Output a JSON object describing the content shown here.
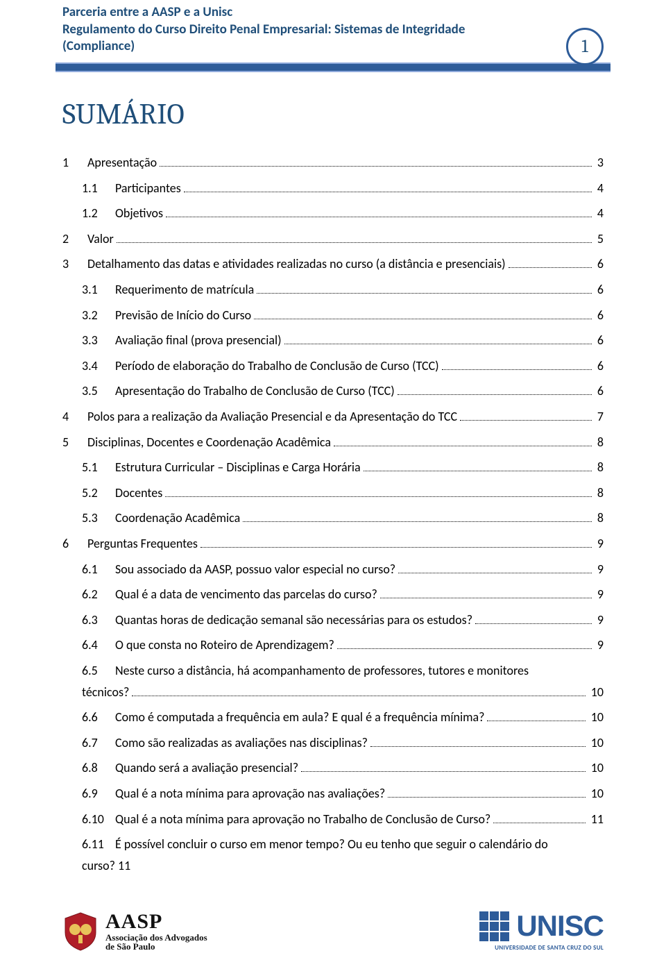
{
  "colors": {
    "header_blue": "#1f4e79",
    "bar_blue": "#2e5c99",
    "bar_border": "#8faadc",
    "text": "#000000",
    "background": "#ffffff"
  },
  "typography": {
    "header_fontsize": 19,
    "title_fontsize": 42,
    "toc_fontsize": 18,
    "page_number_fontsize": 26
  },
  "header": {
    "line1": "Parceria entre a AASP e a Unisc",
    "line2": "Regulamento do Curso Direito Penal Empresarial: Sistemas de Integridade",
    "line3": "(Compliance)",
    "page_number": "1"
  },
  "title": "SUMÁRIO",
  "toc": [
    {
      "level": 1,
      "num": "1",
      "label": "Apresentação",
      "page": "3"
    },
    {
      "level": 2,
      "num": "1.1",
      "label": "Participantes",
      "page": "4"
    },
    {
      "level": 2,
      "num": "1.2",
      "label": "Objetivos",
      "page": "4"
    },
    {
      "level": 1,
      "num": "2",
      "label": "Valor",
      "page": "5"
    },
    {
      "level": 1,
      "num": "3",
      "label": "Detalhamento das datas e atividades realizadas no curso (a distância e presenciais)",
      "page": "6"
    },
    {
      "level": 2,
      "num": "3.1",
      "label": "Requerimento de matrícula",
      "page": "6"
    },
    {
      "level": 2,
      "num": "3.2",
      "label": "Previsão de Início do Curso",
      "page": "6"
    },
    {
      "level": 2,
      "num": "3.3",
      "label": "Avaliação final (prova presencial)",
      "page": "6"
    },
    {
      "level": 2,
      "num": "3.4",
      "label": "Período de elaboração do Trabalho de Conclusão de Curso (TCC)",
      "page": "6"
    },
    {
      "level": 2,
      "num": "3.5",
      "label": "Apresentação do Trabalho de Conclusão de Curso (TCC)",
      "page": "6"
    },
    {
      "level": 1,
      "num": "4",
      "label": "Polos para a realização da Avaliação Presencial e da Apresentação do TCC",
      "page": "7"
    },
    {
      "level": 1,
      "num": "5",
      "label": "Disciplinas, Docentes e Coordenação Acadêmica",
      "page": "8"
    },
    {
      "level": 2,
      "num": "5.1",
      "label": "Estrutura Curricular – Disciplinas e Carga Horária",
      "page": "8"
    },
    {
      "level": 2,
      "num": "5.2",
      "label": "Docentes",
      "page": "8"
    },
    {
      "level": 2,
      "num": "5.3",
      "label": "Coordenação Acadêmica",
      "page": "8"
    },
    {
      "level": 1,
      "num": "6",
      "label": "Perguntas Frequentes",
      "page": "9"
    },
    {
      "level": 2,
      "num": "6.1",
      "label": "Sou associado da AASP, possuo valor especial no curso?",
      "page": "9"
    },
    {
      "level": 2,
      "num": "6.2",
      "label": "Qual é a data de vencimento das parcelas do curso?",
      "page": "9"
    },
    {
      "level": 2,
      "num": "6.3",
      "label": "Quantas horas de dedicação semanal são necessárias para os estudos?",
      "page": "9"
    },
    {
      "level": 2,
      "num": "6.4",
      "label": "O que consta no Roteiro de Aprendizagem?",
      "page": "9"
    },
    {
      "level": 2,
      "num": "6.5",
      "label": "Neste curso a distância, há acompanhamento de professores, tutores e monitores",
      "label2": "técnicos?",
      "page": "10",
      "multiline": true
    },
    {
      "level": 2,
      "num": "6.6",
      "label": "Como é computada a frequência em aula? E qual é a frequência mínima?",
      "page": "10"
    },
    {
      "level": 2,
      "num": "6.7",
      "label": "Como são realizadas as avaliações nas disciplinas?",
      "page": "10"
    },
    {
      "level": 2,
      "num": "6.8",
      "label": "Quando será a avaliação presencial?",
      "page": "10"
    },
    {
      "level": 2,
      "num": "6.9",
      "label": "Qual é a nota mínima para aprovação nas avaliações?",
      "page": "10"
    },
    {
      "level": 2,
      "num": "6.10",
      "label": "Qual é a nota mínima para aprovação no Trabalho de Conclusão de Curso?",
      "page": "11"
    },
    {
      "level": 2,
      "num": "6.11",
      "label": "É possível concluir o curso em menor tempo? Ou eu tenho que seguir o calendário do",
      "label2": "curso? 11",
      "nopage": true,
      "multiline": true
    }
  ],
  "footer": {
    "aasp_big": "AASP",
    "aasp_sub1": "Associação dos Advogados",
    "aasp_sub2": "de São Paulo",
    "unisc_name": "UNISC",
    "unisc_sub": "UNIVERSIDADE DE SANTA CRUZ DO SUL"
  }
}
